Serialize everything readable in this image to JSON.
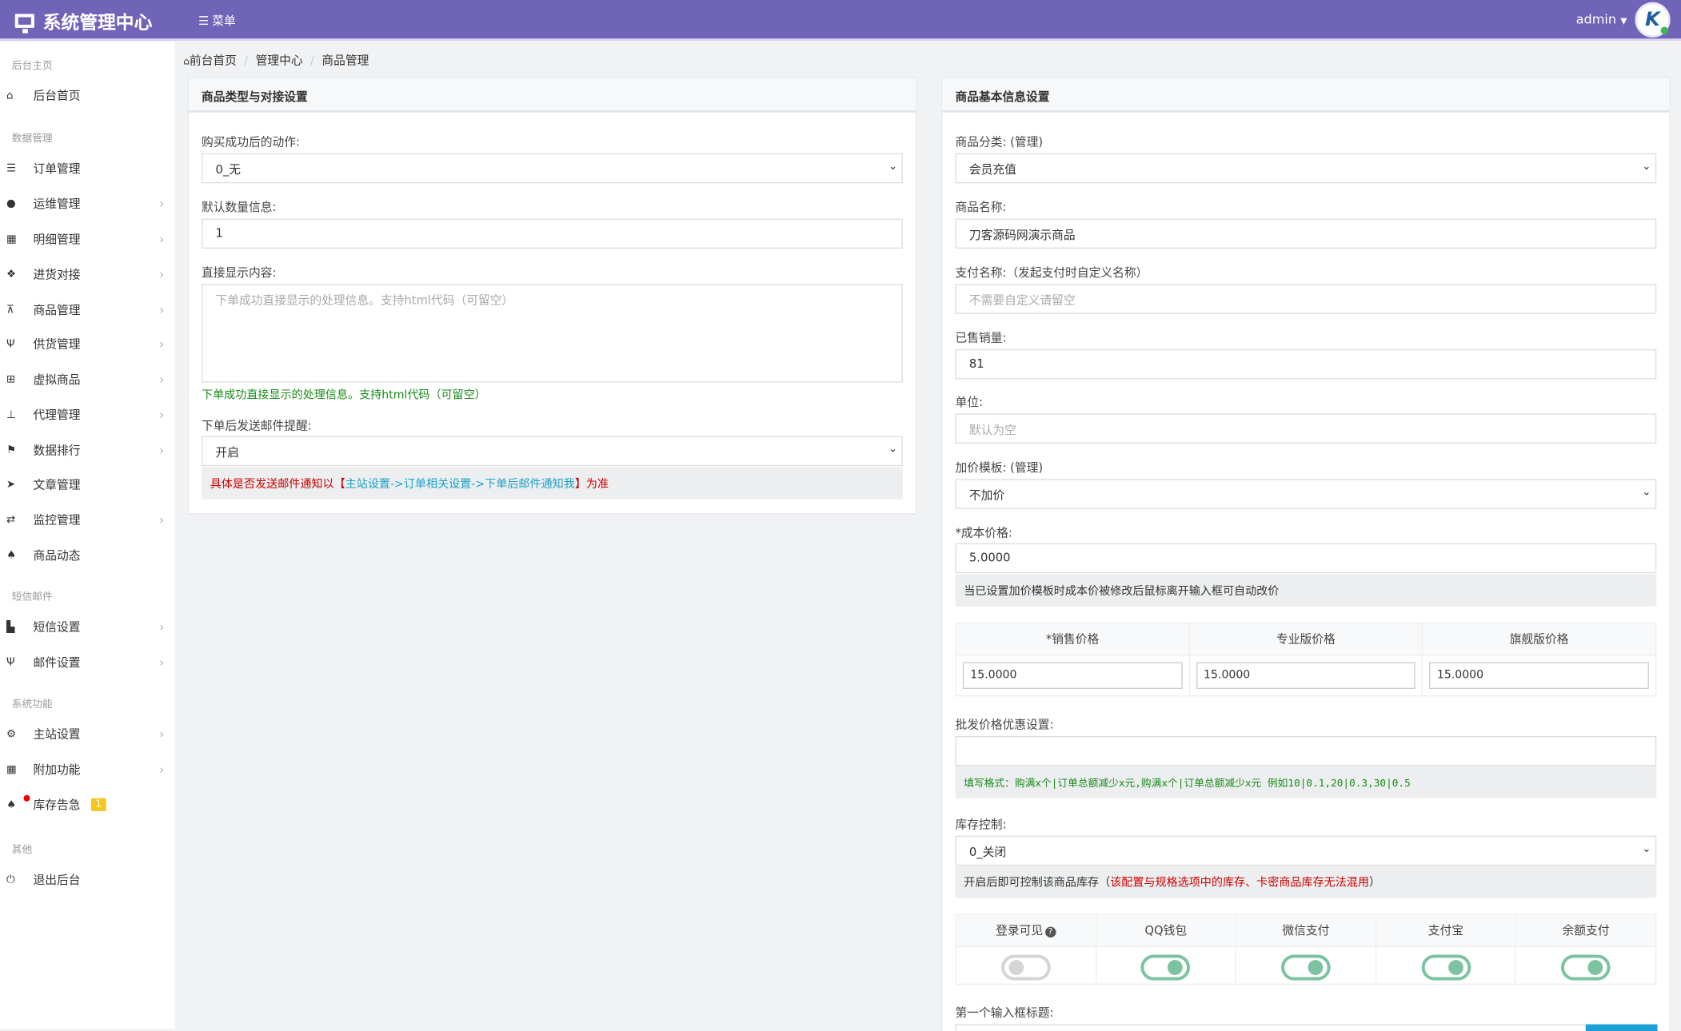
{
  "header": {
    "title": "系统管理中心",
    "menu_label": "菜单",
    "user": "admin",
    "avatar_text": "K"
  },
  "sidebar": {
    "sections": [
      "后台主页",
      "数据管理",
      "短信邮件",
      "系统功能",
      "其他"
    ],
    "items": [
      {
        "label": "后台首页",
        "icon": "home-icon"
      },
      {
        "label": "订单管理",
        "icon": "list-icon"
      },
      {
        "label": "运维管理",
        "icon": "comments-icon"
      },
      {
        "label": "明细管理",
        "icon": "calendar-icon"
      },
      {
        "label": "进货对接",
        "icon": "cubes-icon"
      },
      {
        "label": "商品管理",
        "icon": "cart-icon"
      },
      {
        "label": "供货管理",
        "icon": "cutlery-icon"
      },
      {
        "label": "虚拟商品",
        "icon": "grid-icon"
      },
      {
        "label": "代理管理",
        "icon": "sitemap-icon"
      },
      {
        "label": "数据排行",
        "icon": "flag-icon"
      },
      {
        "label": "文章管理",
        "icon": "send-icon"
      },
      {
        "label": "监控管理",
        "icon": "retweet-icon"
      },
      {
        "label": "商品动态",
        "icon": "bell-icon"
      },
      {
        "label": "短信设置",
        "icon": "chart-icon"
      },
      {
        "label": "邮件设置",
        "icon": "cutlery-icon"
      },
      {
        "label": "主站设置",
        "icon": "gear-icon"
      },
      {
        "label": "附加功能",
        "icon": "calendar-icon"
      },
      {
        "label": "库存告急",
        "icon": "bell-icon",
        "badge": "1"
      },
      {
        "label": "退出后台",
        "icon": "power-icon"
      }
    ]
  },
  "breadcrumb": [
    "前台首页",
    "管理中心",
    "商品管理"
  ],
  "left_panel": {
    "title": "商品类型与对接设置",
    "action_label": "购买成功后的动作:",
    "action_value": "0_无",
    "qty_label": "默认数量信息:",
    "qty_value": "1",
    "display_label": "直接显示内容:",
    "display_placeholder": "下单成功直接显示的处理信息。支持html代码（可留空）",
    "display_help": "下单成功直接显示的处理信息。支持html代码（可留空）",
    "mail_label": "下单后发送邮件提醒:",
    "mail_value": "开启",
    "mail_note_pre": "具体是否发送邮件通知以【",
    "mail_note_link": "主站设置->订单相关设置->下单后邮件通知我",
    "mail_note_post": "】为准"
  },
  "right_panel": {
    "title": "商品基本信息设置",
    "category_label": "商品分类: (管理)",
    "category_value": "会员充值",
    "name_label": "商品名称:",
    "name_value": "刀客源码网演示商品",
    "payname_label": "支付名称:（发起支付时自定义名称）",
    "payname_placeholder": "不需要自定义请留空",
    "sold_label": "已售销量:",
    "sold_value": "81",
    "unit_label": "单位:",
    "unit_placeholder": "默认为空",
    "markup_label": "加价模板: (管理)",
    "markup_value": "不加价",
    "cost_label": "*成本价格:",
    "cost_value": "5.0000",
    "cost_note": "当已设置加价模板时成本价被修改后鼠标离开输入框可自动改价",
    "prices": [
      {
        "header": "*销售价格",
        "value": "15.0000"
      },
      {
        "header": "专业版价格",
        "value": "15.0000"
      },
      {
        "header": "旗舰版价格",
        "value": "15.0000"
      }
    ],
    "wholesale_label": "批发价格优惠设置:",
    "wholesale_value": "",
    "wholesale_note": "填写格式：购满x个|订单总额减少x元,购满x个|订单总额减少x元 例如10|0.1,20|0.3,30|0.5",
    "stock_label": "库存控制:",
    "stock_value": "0_关闭",
    "stock_note_pre": "开启后即可控制该商品库存（",
    "stock_note_red": "该配置与规格选项中的库存、卡密商品库存无法混用",
    "stock_note_post": "）",
    "toggles": [
      {
        "label": "登录可见",
        "on": false
      },
      {
        "label": "QQ钱包",
        "on": true
      },
      {
        "label": "微信支付",
        "on": true
      },
      {
        "label": "支付宝",
        "on": true
      },
      {
        "label": "余额支付",
        "on": true
      }
    ],
    "first_input_label": "第一个输入框标题:"
  },
  "colors": {
    "header": "#7064b8",
    "toggle_on": "#7dc3a2",
    "badge": "#f7c51e"
  }
}
